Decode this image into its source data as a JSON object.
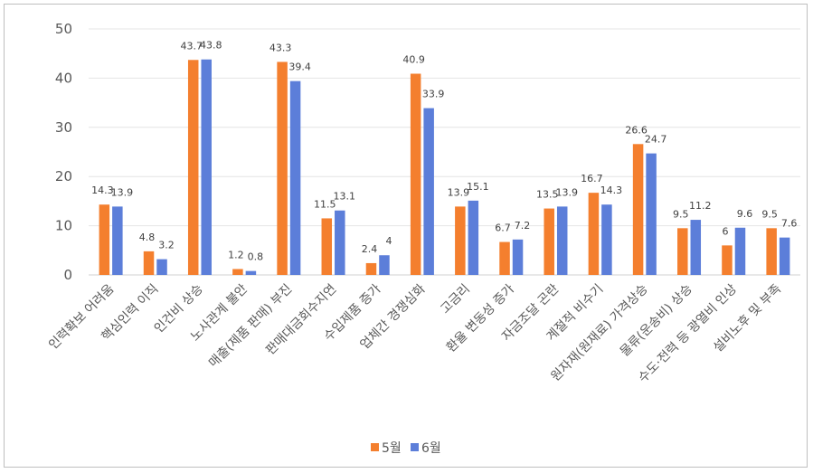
{
  "chart_data": {
    "type": "bar",
    "title": "",
    "xlabel": "",
    "ylabel": "",
    "ylim": [
      0,
      50
    ],
    "yticks": [
      0,
      10,
      20,
      30,
      40,
      50
    ],
    "grid": true,
    "legend_position": "bottom",
    "categories": [
      "인력확보 어려움",
      "핵심인력 이직",
      "인건비 상승",
      "노사관계 불안",
      "매출(제품 판매) 부진",
      "판매대금회수지연",
      "수입제품 증가",
      "업체간 경쟁심화",
      "고금리",
      "환율 변동성 증가",
      "자금조달 곤란",
      "계절적 비수기",
      "원자재(원재료) 가격상승",
      "물류(운송비) 상승",
      "수도·전력 등 광열비 인상",
      "설비노후 및 부족"
    ],
    "series": [
      {
        "name": "5월",
        "color": "#F47F2E",
        "values": [
          14.3,
          4.8,
          43.7,
          1.2,
          43.3,
          11.5,
          2.4,
          40.9,
          13.9,
          6.7,
          13.5,
          16.7,
          26.6,
          9.5,
          6,
          9.5
        ]
      },
      {
        "name": "6월",
        "color": "#5C7ED9",
        "values": [
          13.9,
          3.2,
          43.8,
          0.8,
          39.4,
          13.1,
          4,
          33.9,
          15.1,
          7.2,
          13.9,
          14.3,
          24.7,
          11.2,
          9.6,
          7.6
        ]
      }
    ]
  }
}
